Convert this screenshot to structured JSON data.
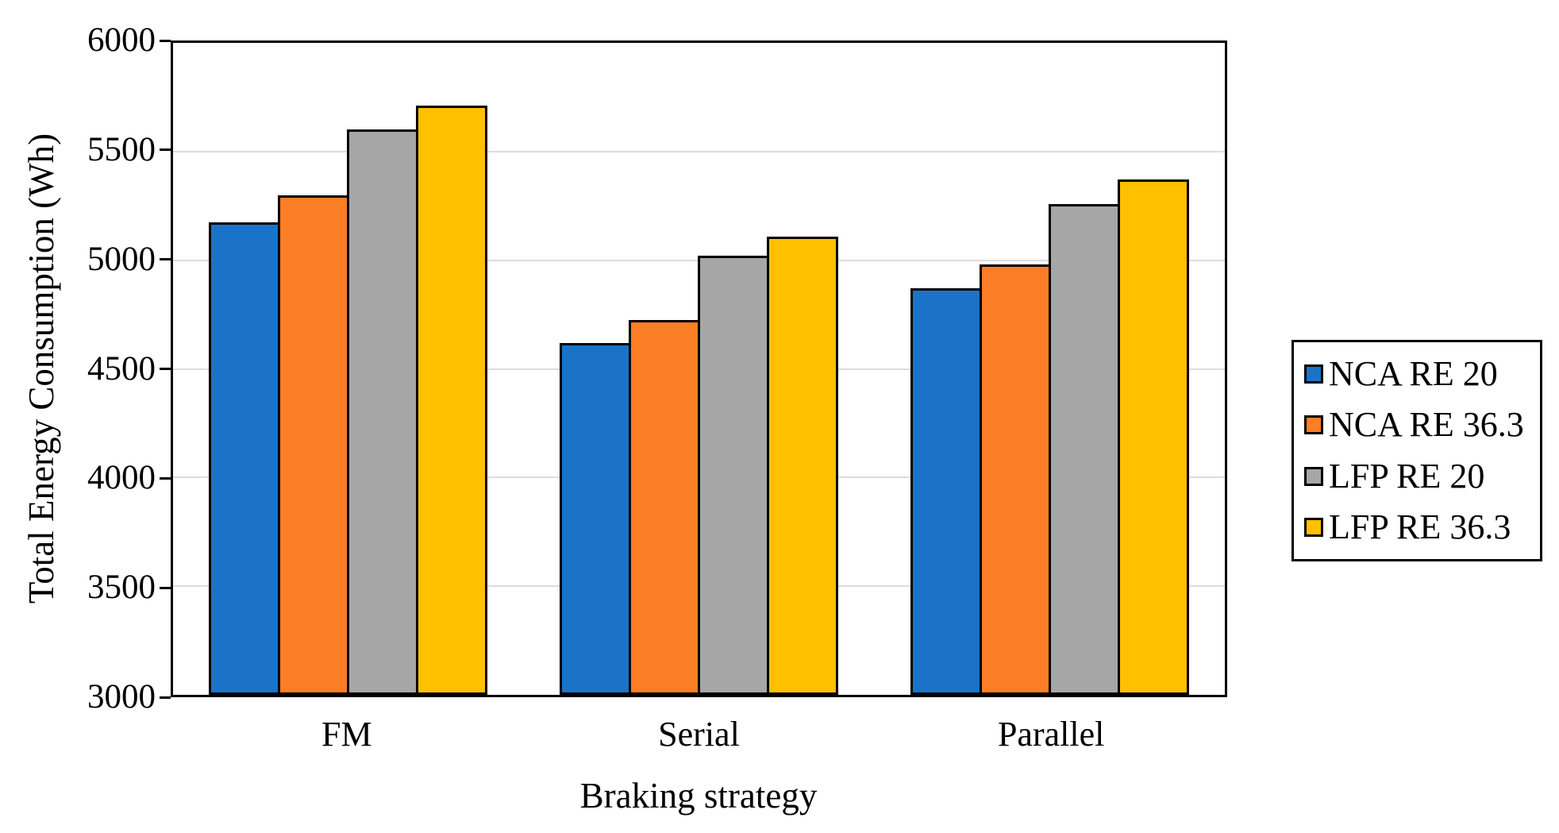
{
  "chart_data": {
    "type": "bar",
    "title": "",
    "xlabel": "Braking strategy",
    "ylabel": "Total Energy Consumption (Wh)",
    "categories": [
      "FM",
      "Serial",
      "Parallel"
    ],
    "series": [
      {
        "name": "NCA RE 20",
        "color": "#1B73C8",
        "values": [
          5175,
          4620,
          4870
        ]
      },
      {
        "name": "NCA RE 36.3",
        "color": "#FB7D26",
        "values": [
          5300,
          4725,
          4980
        ]
      },
      {
        "name": "LFP RE 20",
        "color": "#A6A6A6",
        "values": [
          5600,
          5020,
          5260
        ]
      },
      {
        "name": "LFP RE 36.3",
        "color": "#FFC000",
        "values": [
          5710,
          5110,
          5370
        ]
      }
    ],
    "ylim": [
      3000,
      6000
    ],
    "ytick_step": 500,
    "ytick_labels": [
      "3000",
      "3500",
      "4000",
      "4500",
      "5000",
      "5500",
      "6000"
    ],
    "grid": "horizontal",
    "gridline_color": "#DCDCDC",
    "axis_color": "#000000",
    "bar_border_color": "#000000",
    "legend_position": "right",
    "legend_entries": [
      "NCA RE 20",
      "NCA RE 36.3",
      "LFP RE 20",
      "LFP RE 36.3"
    ]
  }
}
